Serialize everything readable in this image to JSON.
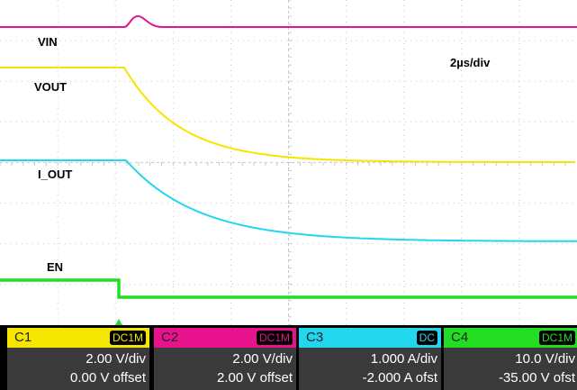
{
  "labels": {
    "vin": "VIN",
    "vout": "VOUT",
    "iout": "I_OUT",
    "en": "EN",
    "timebase": "2µs/div"
  },
  "colors": {
    "ch1": "#f5e600",
    "ch2": "#e8128c",
    "ch3": "#22d6ee",
    "ch4": "#22dd22"
  },
  "channels": [
    {
      "name": "C1",
      "coupling": "DC1M",
      "scale": "2.00 V/div",
      "offset": "0.00 V offset",
      "color": "#f5e600"
    },
    {
      "name": "C2",
      "coupling": "DC1M",
      "scale": "2.00 V/div",
      "offset": "2.00 V offset",
      "color": "#e8128c"
    },
    {
      "name": "C3",
      "coupling": "DC",
      "scale": "1.000 A/div",
      "offset": "-2.000 A ofst",
      "color": "#22d6ee"
    },
    {
      "name": "C4",
      "coupling": "DC1M",
      "scale": "10.0 V/div",
      "offset": "-35.00 V ofst",
      "color": "#22dd22"
    }
  ]
}
